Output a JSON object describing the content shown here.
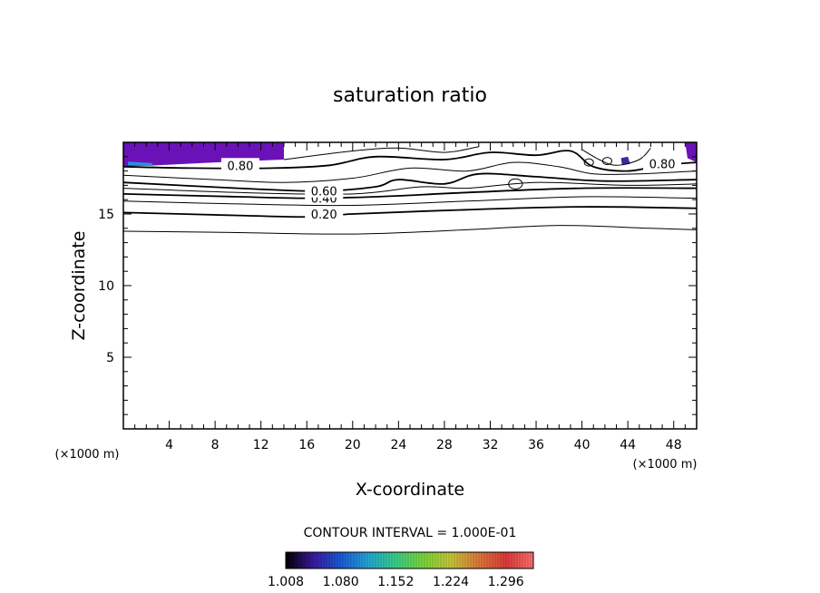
{
  "chart_data": {
    "type": "contour",
    "title": "saturation ratio",
    "xlabel": "X-coordinate",
    "ylabel": "Z-coordinate",
    "x_unit_left": "(×1000 m)",
    "x_unit_right": "(×1000 m)",
    "xlim": [
      0,
      50
    ],
    "ylim": [
      0,
      20
    ],
    "x_ticks": [
      4,
      8,
      12,
      16,
      20,
      24,
      28,
      32,
      36,
      40,
      44,
      48
    ],
    "y_ticks": [
      5,
      10,
      15
    ],
    "contour_interval_text": "CONTOUR INTERVAL = 1.000E-01",
    "contour_labels": [
      {
        "text": "0.20",
        "x": 17.5,
        "y": 15.0
      },
      {
        "text": "0.40",
        "x": 17.5,
        "y": 16.1
      },
      {
        "text": "0.60",
        "x": 17.5,
        "y": 16.6
      },
      {
        "text": "0.80",
        "x": 10.2,
        "y": 18.4
      },
      {
        "text": "0.80",
        "x": 47.0,
        "y": 18.5
      }
    ],
    "contours": [
      {
        "level": 0.1,
        "points": [
          [
            0,
            13.8
          ],
          [
            10,
            13.7
          ],
          [
            20,
            13.6
          ],
          [
            30,
            13.9
          ],
          [
            38,
            14.2
          ],
          [
            46,
            14.0
          ],
          [
            50,
            13.9
          ]
        ]
      },
      {
        "level": 0.2,
        "points": [
          [
            0,
            15.1
          ],
          [
            10,
            14.9
          ],
          [
            16,
            14.8
          ],
          [
            20,
            15.0
          ],
          [
            30,
            15.3
          ],
          [
            40,
            15.5
          ],
          [
            50,
            15.4
          ]
        ]
      },
      {
        "level": 0.3,
        "points": [
          [
            0,
            15.9
          ],
          [
            10,
            15.7
          ],
          [
            20,
            15.6
          ],
          [
            30,
            15.9
          ],
          [
            40,
            16.2
          ],
          [
            50,
            16.1
          ]
        ]
      },
      {
        "level": 0.4,
        "points": [
          [
            0,
            16.4
          ],
          [
            10,
            16.2
          ],
          [
            16,
            16.1
          ],
          [
            22,
            16.2
          ],
          [
            30,
            16.5
          ],
          [
            40,
            16.8
          ],
          [
            50,
            16.8
          ]
        ]
      },
      {
        "level": 0.5,
        "points": [
          [
            0,
            16.8
          ],
          [
            10,
            16.5
          ],
          [
            20,
            16.4
          ],
          [
            26,
            16.9
          ],
          [
            30,
            16.8
          ],
          [
            36,
            17.2
          ],
          [
            44,
            17.0
          ],
          [
            50,
            17.1
          ]
        ]
      },
      {
        "level": 0.6,
        "points": [
          [
            0,
            17.2
          ],
          [
            10,
            16.8
          ],
          [
            17,
            16.6
          ],
          [
            22,
            16.9
          ],
          [
            24,
            17.4
          ],
          [
            28,
            17.1
          ],
          [
            31,
            17.8
          ],
          [
            36,
            17.6
          ],
          [
            42,
            17.3
          ],
          [
            50,
            17.4
          ]
        ]
      },
      {
        "level": 0.7,
        "points": [
          [
            0,
            17.7
          ],
          [
            8,
            17.4
          ],
          [
            14,
            17.2
          ],
          [
            20,
            17.5
          ],
          [
            25,
            18.2
          ],
          [
            30,
            18.0
          ],
          [
            34,
            18.6
          ],
          [
            38,
            18.3
          ],
          [
            41,
            17.8
          ],
          [
            45,
            17.8
          ],
          [
            50,
            18.0
          ]
        ]
      },
      {
        "level": 0.8,
        "points": [
          [
            0,
            18.3
          ],
          [
            6,
            18.2
          ],
          [
            13,
            18.2
          ],
          [
            18,
            18.4
          ],
          [
            22,
            19.0
          ],
          [
            28,
            18.8
          ],
          [
            32,
            19.3
          ],
          [
            36,
            19.1
          ],
          [
            39,
            19.4
          ],
          [
            41,
            18.3
          ],
          [
            44,
            18.0
          ],
          [
            47,
            18.4
          ],
          [
            50,
            18.6
          ]
        ]
      },
      {
        "level": 0.9,
        "points": [
          [
            14,
            18.8
          ],
          [
            20,
            19.4
          ],
          [
            24,
            19.6
          ],
          [
            28,
            19.3
          ],
          [
            31,
            19.7
          ]
        ]
      },
      {
        "level": 0.95,
        "points": [
          [
            40,
            19.5
          ],
          [
            41.5,
            18.8
          ],
          [
            43,
            18.4
          ],
          [
            45,
            18.8
          ],
          [
            46,
            19.6
          ]
        ]
      }
    ],
    "small_closed_contours": [
      {
        "cx": 34.2,
        "cy": 17.1,
        "rx": 0.6,
        "ry": 0.35
      },
      {
        "cx": 40.6,
        "cy": 18.6,
        "rx": 0.4,
        "ry": 0.25
      },
      {
        "cx": 42.2,
        "cy": 18.7,
        "rx": 0.4,
        "ry": 0.25
      }
    ],
    "filled_regions": [
      {
        "color": "#6a12b8",
        "points": [
          [
            0,
            20
          ],
          [
            14,
            20
          ],
          [
            14,
            18.8
          ],
          [
            8,
            18.6
          ],
          [
            3,
            18.4
          ],
          [
            0,
            18.3
          ]
        ]
      },
      {
        "color": "#2a8fe0",
        "points": [
          [
            0.4,
            18.65
          ],
          [
            2.5,
            18.55
          ],
          [
            2.6,
            18.35
          ],
          [
            0.4,
            18.4
          ]
        ]
      },
      {
        "color": "#6a12b8",
        "points": [
          [
            49,
            20
          ],
          [
            50,
            20
          ],
          [
            50,
            18.6
          ],
          [
            49.2,
            18.9
          ]
        ]
      },
      {
        "color": "#3a2aa0",
        "points": [
          [
            43.4,
            18.9
          ],
          [
            44,
            19.0
          ],
          [
            44.2,
            18.5
          ],
          [
            43.5,
            18.4
          ]
        ]
      }
    ],
    "colorbar": {
      "min": 1.008,
      "max": 1.332,
      "tick_values": [
        1.008,
        1.08,
        1.152,
        1.224,
        1.296
      ],
      "tick_labels": [
        "1.008",
        "1.080",
        "1.152",
        "1.224",
        "1.296"
      ],
      "stops": [
        "#000000",
        "#3a1aa0",
        "#1a5ad8",
        "#22a8d8",
        "#3ad088",
        "#7ad83a",
        "#c8c83a",
        "#e07a3a",
        "#e03a3a",
        "#ff7070"
      ]
    }
  }
}
